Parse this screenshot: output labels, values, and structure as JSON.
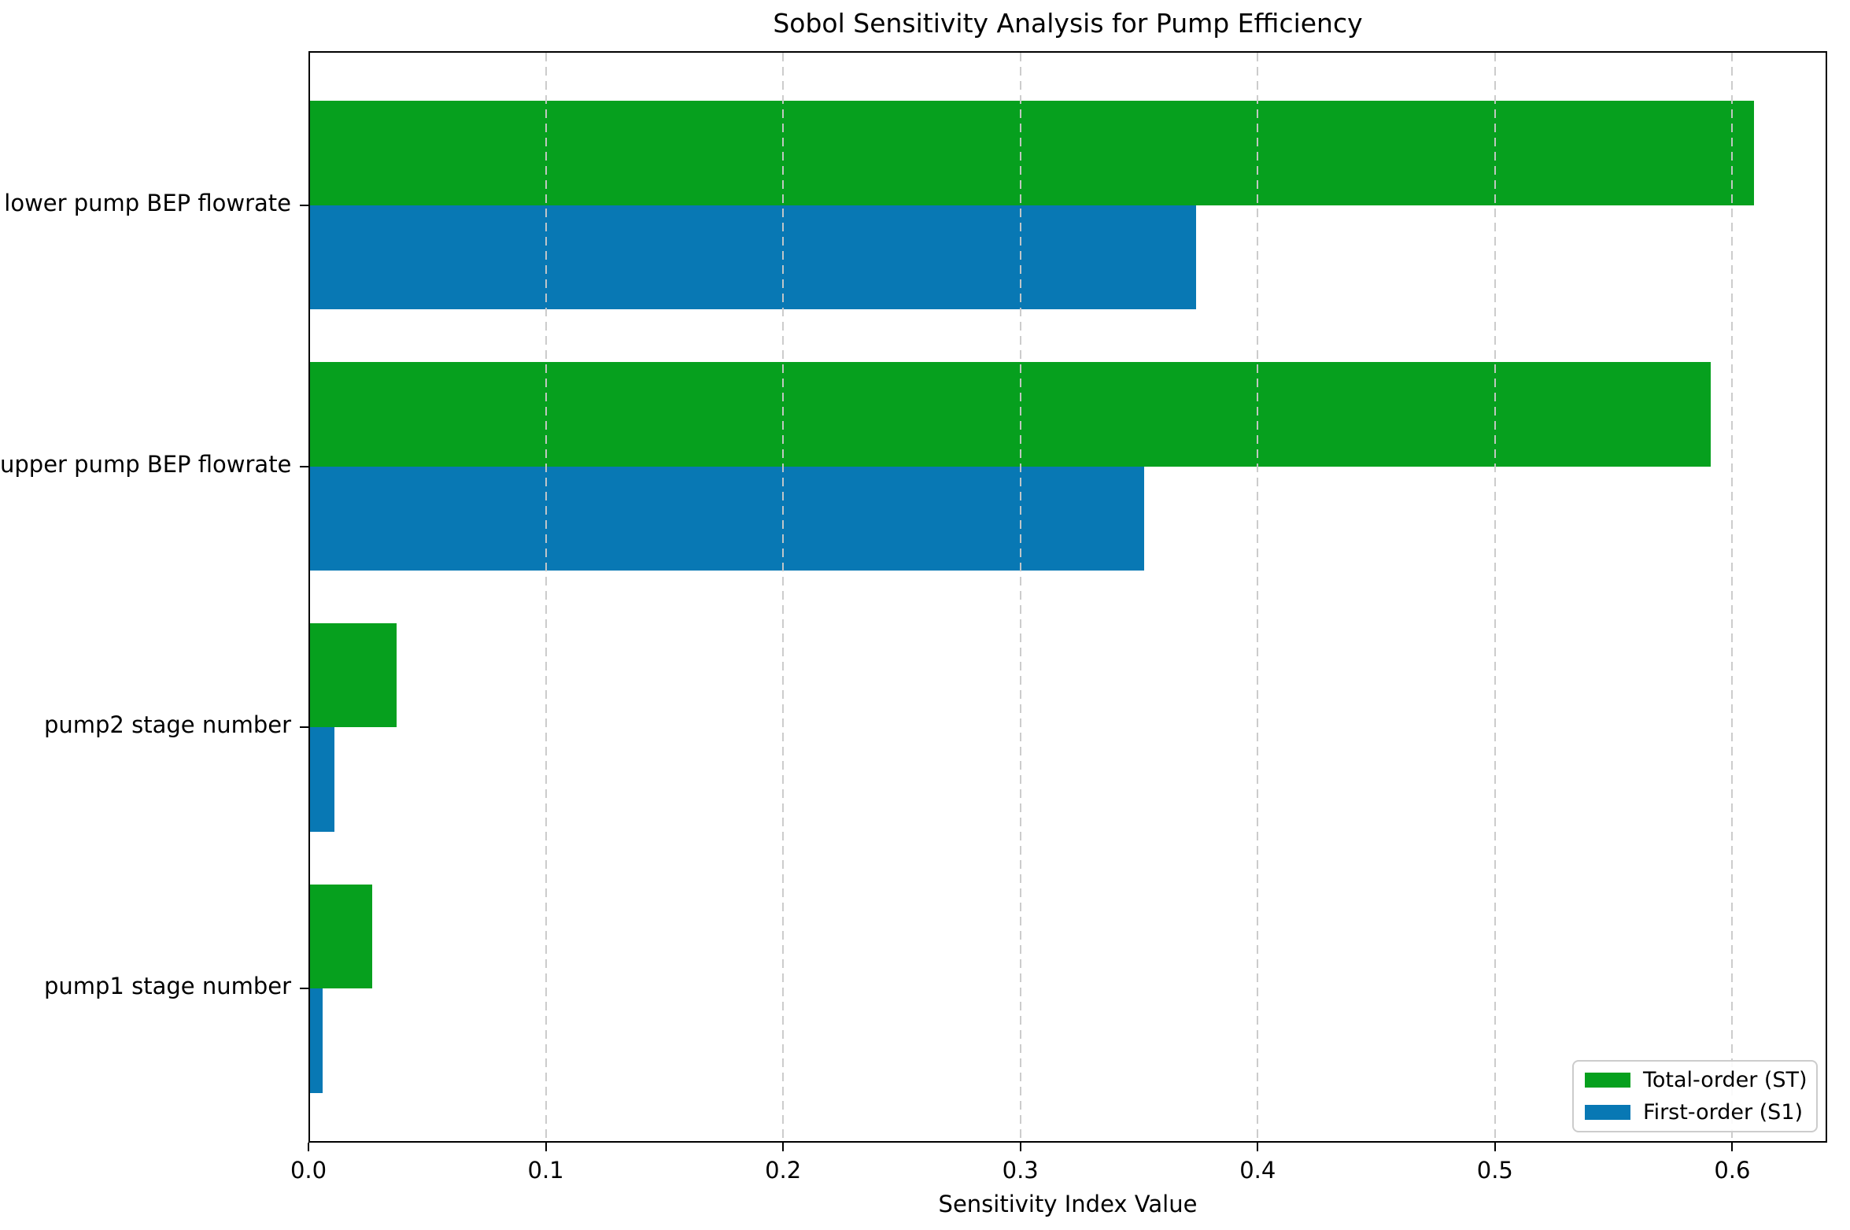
{
  "chart_data": {
    "type": "bar",
    "orientation": "horizontal",
    "title": "Sobol Sensitivity Analysis for Pump Efficiency",
    "xlabel": "Sensitivity Index Value",
    "ylabel": "",
    "categories": [
      "lower pump BEP flowrate",
      "upper pump BEP flowrate",
      "pump2 stage number",
      "pump1 stage number"
    ],
    "series": [
      {
        "name": "Total-order (ST)",
        "color": "#06a01e",
        "values": [
          0.609,
          0.591,
          0.037,
          0.027
        ]
      },
      {
        "name": "First-order (S1)",
        "color": "#0878b4",
        "values": [
          0.374,
          0.352,
          0.011,
          0.006
        ]
      }
    ],
    "xlim": [
      0.0,
      0.64
    ],
    "xticks": [
      0.0,
      0.1,
      0.2,
      0.3,
      0.4,
      0.5,
      0.6
    ],
    "xtick_labels": [
      "0.0",
      "0.1",
      "0.2",
      "0.3",
      "0.4",
      "0.5",
      "0.6"
    ],
    "grid": "vertical-dashed, drawn above bars",
    "legend_position": "lower right",
    "plot_border": "full box, black"
  },
  "colors": {
    "total_order_green": "#06a01e",
    "first_order_blue": "#0878b4",
    "gridline_gray": "#c9c9c9",
    "axis_black": "#000000",
    "background": "#ffffff"
  }
}
